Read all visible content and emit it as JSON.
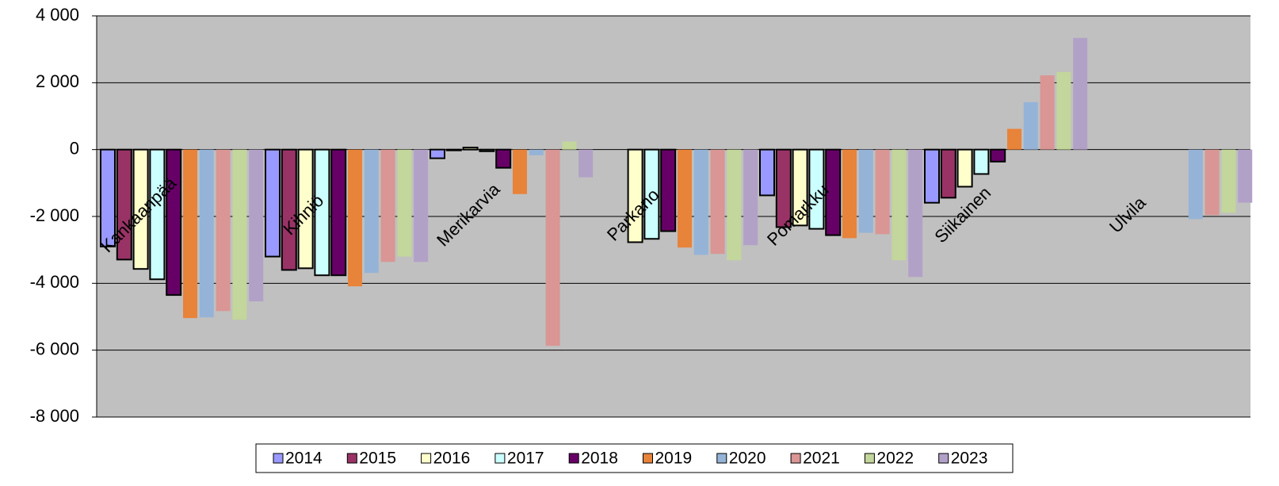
{
  "chart_data": {
    "type": "bar",
    "categories": [
      "Kankaanpää",
      "Kihniö",
      "Merikarvia",
      "Parkano",
      "Pomarkku",
      "Siikainen",
      "Ulvila"
    ],
    "series": [
      {
        "name": "2014",
        "color": "#9999ff",
        "edgecolor": "#000000",
        "values": [
          -2900,
          -3200,
          -260,
          null,
          -1370,
          -1590,
          null
        ]
      },
      {
        "name": "2015",
        "color": "#993366",
        "edgecolor": "#000000",
        "values": [
          -3290,
          -3600,
          -20,
          null,
          -2320,
          -1440,
          null
        ]
      },
      {
        "name": "2016",
        "color": "#ffffcc",
        "edgecolor": "#000000",
        "values": [
          -3570,
          -3550,
          60,
          -2770,
          -2270,
          -1110,
          null
        ]
      },
      {
        "name": "2017",
        "color": "#ccffff",
        "edgecolor": "#000000",
        "values": [
          -3880,
          -3760,
          -50,
          -2670,
          -2370,
          -730,
          null
        ]
      },
      {
        "name": "2018",
        "color": "#660066",
        "edgecolor": "#000000",
        "values": [
          -4350,
          -3760,
          -545,
          -2440,
          -2560,
          -360,
          null
        ]
      },
      {
        "name": "2019",
        "color": "#e8833a",
        "values": [
          -5040,
          -4090,
          -1330,
          -2930,
          -2650,
          620,
          null
        ]
      },
      {
        "name": "2020",
        "color": "#95b3d7",
        "values": [
          -5020,
          -3690,
          -170,
          -3150,
          -2490,
          1420,
          -2080
        ]
      },
      {
        "name": "2021",
        "color": "#d99694",
        "values": [
          -4830,
          -3360,
          -5870,
          -3120,
          -2530,
          2220,
          -1960
        ]
      },
      {
        "name": "2022",
        "color": "#c3d69b",
        "values": [
          -5090,
          -3200,
          240,
          -3310,
          -3310,
          2320,
          -1890
        ]
      },
      {
        "name": "2023",
        "color": "#b2a1c7",
        "values": [
          -4540,
          -3360,
          -830,
          -2860,
          -3810,
          3340,
          -1590
        ]
      }
    ],
    "ylim": [
      -8000,
      4000
    ],
    "yticks": [
      {
        "value": 4000,
        "label": "4 000"
      },
      {
        "value": 2000,
        "label": "2 000"
      },
      0,
      {
        "value": -2000,
        "label": "-2 000"
      },
      {
        "value": -4000,
        "label": "-4 000"
      },
      {
        "value": -6000,
        "label": "-6 000"
      },
      {
        "value": -8000,
        "label": "-8 000"
      }
    ],
    "grid": true,
    "background": "#c0c0c0",
    "legend": "bottom"
  }
}
